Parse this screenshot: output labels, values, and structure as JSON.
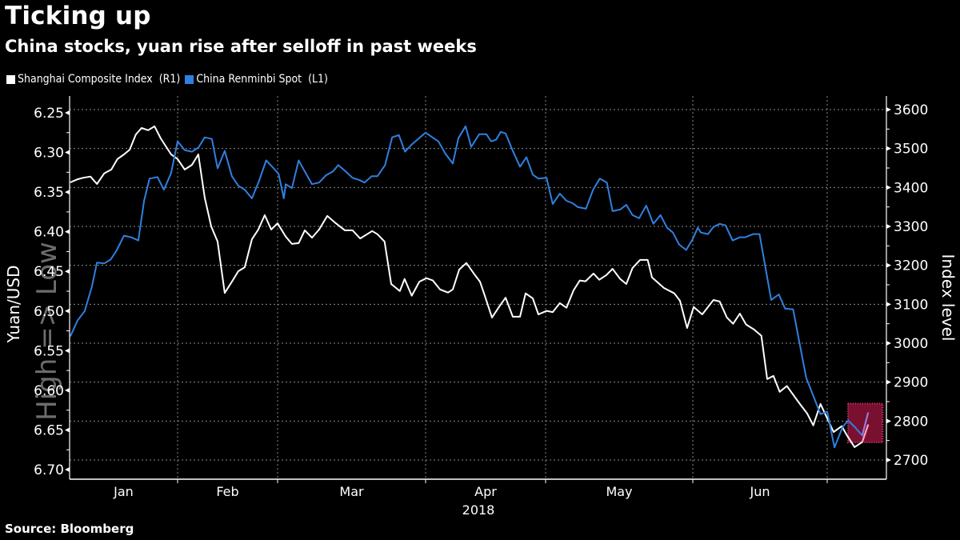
{
  "header": {
    "title": "Ticking up",
    "subtitle": "China stocks, yuan rise after selloff in past weeks"
  },
  "legend": [
    {
      "label": "Shanghai Composite Index  (R1)",
      "color": "#ffffff"
    },
    {
      "label": "China Renminbi Spot  (L1)",
      "color": "#2f80e0"
    }
  ],
  "source": "Source: Bloomberg",
  "chart_data": {
    "type": "line",
    "title": "Ticking up",
    "subtitle": "China stocks, yuan rise after selloff in past weeks",
    "xlabel": "2018",
    "x_unit": "day of year 2018",
    "x_range": [
      2,
      195
    ],
    "month_ticks": [
      {
        "label": "Jan",
        "start_day": 2
      },
      {
        "label": "Feb",
        "start_day": 32
      },
      {
        "label": "Mar",
        "start_day": 60
      },
      {
        "label": "Apr",
        "start_day": 91
      },
      {
        "label": "May",
        "start_day": 121
      },
      {
        "label": "Jun",
        "start_day": 152
      },
      {
        "label": "",
        "start_day": 182
      }
    ],
    "year_label": "2018",
    "left_axis": {
      "label": "Yuan/USD",
      "inverted": true,
      "range": [
        6.25,
        6.7
      ],
      "ticks": [
        "6.25",
        "6.30",
        "6.35",
        "6.40",
        "6.45",
        "6.50",
        "6.55",
        "6.60",
        "6.65",
        "6.70"
      ],
      "watermark": "High => Low"
    },
    "right_axis": {
      "label": "Index level",
      "range": [
        2700,
        3600
      ],
      "ticks": [
        "3600",
        "3500",
        "3400",
        "3300",
        "3200",
        "3100",
        "3000",
        "2900",
        "2800",
        "2700"
      ]
    },
    "grid": true,
    "legend_position": "top-left",
    "highlight": {
      "start_day": 189,
      "end_day": 194,
      "left_range": [
        6.61,
        6.66
      ],
      "right_range": [
        2745,
        2845
      ],
      "color": "#7a1030"
    },
    "series": [
      {
        "name": "Shanghai Composite Index (R1)",
        "axis": "right",
        "color": "#ffffff",
        "points": [
          [
            2.2,
            3413
          ],
          [
            4.2,
            3421
          ],
          [
            5.8,
            3425
          ],
          [
            7.8,
            3428
          ],
          [
            9.6,
            3409
          ],
          [
            11.6,
            3436
          ],
          [
            13.6,
            3446
          ],
          [
            15.3,
            3473
          ],
          [
            17.1,
            3485
          ],
          [
            18.7,
            3497
          ],
          [
            20.4,
            3536
          ],
          [
            22,
            3553
          ],
          [
            23.8,
            3547
          ],
          [
            25.6,
            3557
          ],
          [
            27.3,
            3526
          ],
          [
            30.2,
            3485
          ],
          [
            32,
            3473
          ],
          [
            34,
            3446
          ],
          [
            36,
            3458
          ],
          [
            37.8,
            3485
          ],
          [
            39.6,
            3374
          ],
          [
            41.4,
            3300
          ],
          [
            43.2,
            3261
          ],
          [
            45.2,
            3129
          ],
          [
            47.2,
            3158
          ],
          [
            49,
            3185
          ],
          [
            50.8,
            3195
          ],
          [
            52.8,
            3267
          ],
          [
            54.6,
            3292
          ],
          [
            56.4,
            3329
          ],
          [
            58.2,
            3292
          ],
          [
            60,
            3308
          ],
          [
            61.7,
            3274
          ],
          [
            63,
            3255
          ],
          [
            64.4,
            3257
          ],
          [
            65.7,
            3290
          ],
          [
            67.2,
            3271
          ],
          [
            68.7,
            3292
          ],
          [
            70.4,
            3327
          ],
          [
            72.2,
            3308
          ],
          [
            74.1,
            3290
          ],
          [
            75.7,
            3290
          ],
          [
            77.3,
            3269
          ],
          [
            79.8,
            3288
          ],
          [
            80.9,
            3280
          ],
          [
            82.4,
            3261
          ],
          [
            83.8,
            3152
          ],
          [
            85.6,
            3134
          ],
          [
            86.6,
            3165
          ],
          [
            88.1,
            3122
          ],
          [
            89.7,
            3158
          ],
          [
            91.2,
            3167
          ],
          [
            92.8,
            3161
          ],
          [
            94.6,
            3138
          ],
          [
            96.6,
            3130
          ],
          [
            97.8,
            3138
          ],
          [
            99.4,
            3189
          ],
          [
            101.2,
            3206
          ],
          [
            103.2,
            3177
          ],
          [
            104.6,
            3158
          ],
          [
            105.6,
            3128
          ],
          [
            107.6,
            3066
          ],
          [
            109.6,
            3097
          ],
          [
            111,
            3117
          ],
          [
            112.8,
            3068
          ],
          [
            114.6,
            3068
          ],
          [
            116,
            3128
          ],
          [
            117.8,
            3115
          ],
          [
            119.2,
            3074
          ],
          [
            121.2,
            3083
          ],
          [
            122.5,
            3080
          ],
          [
            124,
            3103
          ],
          [
            125.4,
            3091
          ],
          [
            126.9,
            3136
          ],
          [
            128.2,
            3161
          ],
          [
            129.4,
            3159
          ],
          [
            131.1,
            3179
          ],
          [
            132.3,
            3163
          ],
          [
            133.8,
            3175
          ],
          [
            135.1,
            3191
          ],
          [
            136.7,
            3165
          ],
          [
            138,
            3152
          ],
          [
            139.3,
            3193
          ],
          [
            140.9,
            3214
          ],
          [
            142.5,
            3214
          ],
          [
            143.4,
            3169
          ],
          [
            145.9,
            3142
          ],
          [
            148.1,
            3128
          ],
          [
            149.3,
            3109
          ],
          [
            150.8,
            3039
          ],
          [
            152.2,
            3093
          ],
          [
            154.1,
            3074
          ],
          [
            156.6,
            3111
          ],
          [
            158,
            3107
          ],
          [
            159.6,
            3066
          ],
          [
            161,
            3050
          ],
          [
            162.5,
            3076
          ],
          [
            163.9,
            3048
          ],
          [
            165.7,
            3035
          ],
          [
            167.3,
            3019
          ],
          [
            168.6,
            2908
          ],
          [
            170,
            2916
          ],
          [
            171.4,
            2875
          ],
          [
            173,
            2890
          ],
          [
            174.7,
            2863
          ],
          [
            175.9,
            2844
          ],
          [
            177.5,
            2820
          ],
          [
            178.9,
            2789
          ],
          [
            180.5,
            2844
          ],
          [
            183.4,
            2772
          ],
          [
            185.2,
            2787
          ],
          [
            186.2,
            2766
          ],
          [
            188,
            2733
          ],
          [
            189.7,
            2746
          ],
          [
            191,
            2791
          ]
        ]
      },
      {
        "name": "China Renminbi Spot (L1)",
        "axis": "left",
        "color": "#2f80e0",
        "points": [
          [
            2.2,
            6.532
          ],
          [
            4.2,
            6.512
          ],
          [
            6.2,
            6.5
          ],
          [
            8.2,
            6.469
          ],
          [
            9.6,
            6.439
          ],
          [
            11.6,
            6.44
          ],
          [
            13.4,
            6.435
          ],
          [
            15,
            6.424
          ],
          [
            17.1,
            6.405
          ],
          [
            19.1,
            6.407
          ],
          [
            21.1,
            6.411
          ],
          [
            22.7,
            6.361
          ],
          [
            24.2,
            6.333
          ],
          [
            26.4,
            6.331
          ],
          [
            28.2,
            6.347
          ],
          [
            30.2,
            6.326
          ],
          [
            32,
            6.286
          ],
          [
            34,
            6.297
          ],
          [
            36,
            6.299
          ],
          [
            37.8,
            6.294
          ],
          [
            39.6,
            6.281
          ],
          [
            41.6,
            6.283
          ],
          [
            43.2,
            6.32
          ],
          [
            45.2,
            6.298
          ],
          [
            47.2,
            6.33
          ],
          [
            49,
            6.342
          ],
          [
            50.8,
            6.347
          ],
          [
            52.8,
            6.358
          ],
          [
            54.8,
            6.336
          ],
          [
            56.8,
            6.31
          ],
          [
            58.9,
            6.32
          ],
          [
            60.2,
            6.327
          ],
          [
            61.3,
            6.358
          ],
          [
            61.7,
            6.34
          ],
          [
            63,
            6.345
          ],
          [
            64.4,
            6.31
          ],
          [
            65.7,
            6.324
          ],
          [
            67.2,
            6.34
          ],
          [
            68.7,
            6.338
          ],
          [
            70.1,
            6.329
          ],
          [
            71.6,
            6.324
          ],
          [
            72.7,
            6.316
          ],
          [
            74.1,
            6.323
          ],
          [
            75.7,
            6.332
          ],
          [
            77.2,
            6.335
          ],
          [
            78.2,
            6.338
          ],
          [
            79.7,
            6.33
          ],
          [
            80.9,
            6.33
          ],
          [
            82.5,
            6.316
          ],
          [
            84,
            6.281
          ],
          [
            85.4,
            6.278
          ],
          [
            86.7,
            6.299
          ],
          [
            88.1,
            6.29
          ],
          [
            91,
            6.275
          ],
          [
            93,
            6.282
          ],
          [
            94.2,
            6.286
          ],
          [
            96,
            6.302
          ],
          [
            97.8,
            6.314
          ],
          [
            99.2,
            6.282
          ],
          [
            101,
            6.267
          ],
          [
            102.4,
            6.293
          ],
          [
            104.4,
            6.277
          ],
          [
            106.2,
            6.277
          ],
          [
            107.4,
            6.286
          ],
          [
            108.6,
            6.284
          ],
          [
            109.8,
            6.274
          ],
          [
            111,
            6.276
          ],
          [
            112.8,
            6.298
          ],
          [
            114.6,
            6.318
          ],
          [
            116.2,
            6.306
          ],
          [
            117.8,
            6.328
          ],
          [
            119.2,
            6.333
          ],
          [
            121.2,
            6.332
          ],
          [
            122.5,
            6.365
          ],
          [
            124,
            6.352
          ],
          [
            125.4,
            6.361
          ],
          [
            126.7,
            6.364
          ],
          [
            127.8,
            6.369
          ],
          [
            129.5,
            6.371
          ],
          [
            131,
            6.347
          ],
          [
            132.4,
            6.333
          ],
          [
            133.9,
            6.338
          ],
          [
            135.1,
            6.374
          ],
          [
            136.7,
            6.372
          ],
          [
            138,
            6.366
          ],
          [
            139.3,
            6.379
          ],
          [
            140.7,
            6.383
          ],
          [
            142.2,
            6.367
          ],
          [
            143.7,
            6.39
          ],
          [
            145.2,
            6.379
          ],
          [
            146.6,
            6.395
          ],
          [
            147.8,
            6.401
          ],
          [
            149.1,
            6.416
          ],
          [
            150.6,
            6.423
          ],
          [
            152,
            6.409
          ],
          [
            153.1,
            6.395
          ],
          [
            153.8,
            6.401
          ],
          [
            155.4,
            6.403
          ],
          [
            156.6,
            6.394
          ],
          [
            158,
            6.39
          ],
          [
            159.3,
            6.392
          ],
          [
            160.9,
            6.411
          ],
          [
            162.5,
            6.407
          ],
          [
            163.7,
            6.407
          ],
          [
            165.5,
            6.403
          ],
          [
            166.9,
            6.403
          ],
          [
            169.5,
            6.486
          ],
          [
            171.2,
            6.479
          ],
          [
            172.6,
            6.497
          ],
          [
            174.4,
            6.498
          ],
          [
            177.3,
            6.584
          ],
          [
            178.9,
            6.607
          ],
          [
            180.5,
            6.63
          ],
          [
            182,
            6.627
          ],
          [
            183.6,
            6.672
          ],
          [
            185.4,
            6.646
          ],
          [
            186.6,
            6.638
          ],
          [
            188,
            6.646
          ],
          [
            189.7,
            6.657
          ],
          [
            191,
            6.628
          ]
        ]
      }
    ]
  }
}
